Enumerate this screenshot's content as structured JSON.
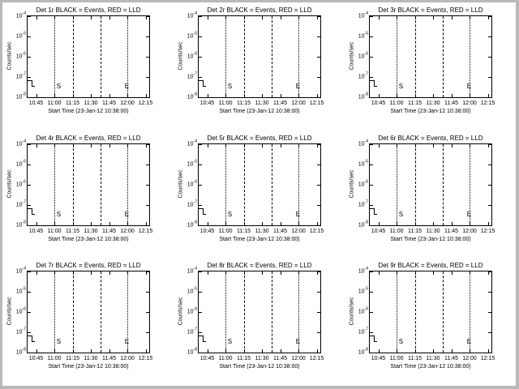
{
  "page": {
    "background": "#b9b9b9",
    "plot_background": "#ffffff",
    "axis_color": "#000000"
  },
  "chart_data": {
    "type": "line",
    "layout": {
      "rows": 3,
      "cols": 3,
      "grid": "off"
    },
    "shared": {
      "xlabel": "Start Time (23-Jan-12 10:38:00)",
      "ylabel": "Counts/sec",
      "x_range": [
        "10:38",
        "12:18"
      ],
      "y_scale": "log",
      "y_range": [
        1e-08,
        0.0001
      ],
      "x_ticks": [
        {
          "label": "10:45",
          "f": 0.07
        },
        {
          "label": "11:00",
          "f": 0.22
        },
        {
          "label": "11:15",
          "f": 0.37
        },
        {
          "label": "11:30",
          "f": 0.52
        },
        {
          "label": "11:45",
          "f": 0.67
        },
        {
          "label": "12:00",
          "f": 0.82
        },
        {
          "label": "12:15",
          "f": 0.97
        }
      ],
      "y_ticks": [
        {
          "base": "10",
          "exp": "-4",
          "f": 0.0
        },
        {
          "base": "10",
          "exp": "-5",
          "f": 0.25
        },
        {
          "base": "10",
          "exp": "-6",
          "f": 0.5
        },
        {
          "base": "10",
          "exp": "-7",
          "f": 0.75
        },
        {
          "base": "10",
          "exp": "-8",
          "f": 1.0
        }
      ],
      "vlines": [
        {
          "style": "dotted",
          "time": "11:00",
          "f": 0.22
        },
        {
          "style": "dashed",
          "time": "11:15",
          "f": 0.37
        },
        {
          "style": "dashed",
          "time": "11:38",
          "f": 0.6
        },
        {
          "style": "dotted",
          "time": "12:00",
          "f": 0.82
        }
      ],
      "annotations": [
        {
          "label": "S",
          "f": 0.225
        },
        {
          "label": "E",
          "f": 0.785
        }
      ],
      "series": [
        {
          "name": "Events",
          "color": "#000000",
          "points": []
        },
        {
          "name": "LLD",
          "color": "#ff0000",
          "points": []
        }
      ]
    },
    "panels": [
      {
        "title": "Det 1r BLACK = Events, RED = LLD"
      },
      {
        "title": "Det 2r BLACK = Events, RED = LLD"
      },
      {
        "title": "Det 3r BLACK = Events, RED = LLD"
      },
      {
        "title": "Det 4r BLACK = Events, RED = LLD"
      },
      {
        "title": "Det 5r BLACK = Events, RED = LLD"
      },
      {
        "title": "Det 6r BLACK = Events, RED = LLD"
      },
      {
        "title": "Det 7r BLACK = Events, RED = LLD"
      },
      {
        "title": "Det 8r BLACK = Events, RED = LLD"
      },
      {
        "title": "Det 9r BLACK = Events, RED = LLD"
      }
    ]
  }
}
